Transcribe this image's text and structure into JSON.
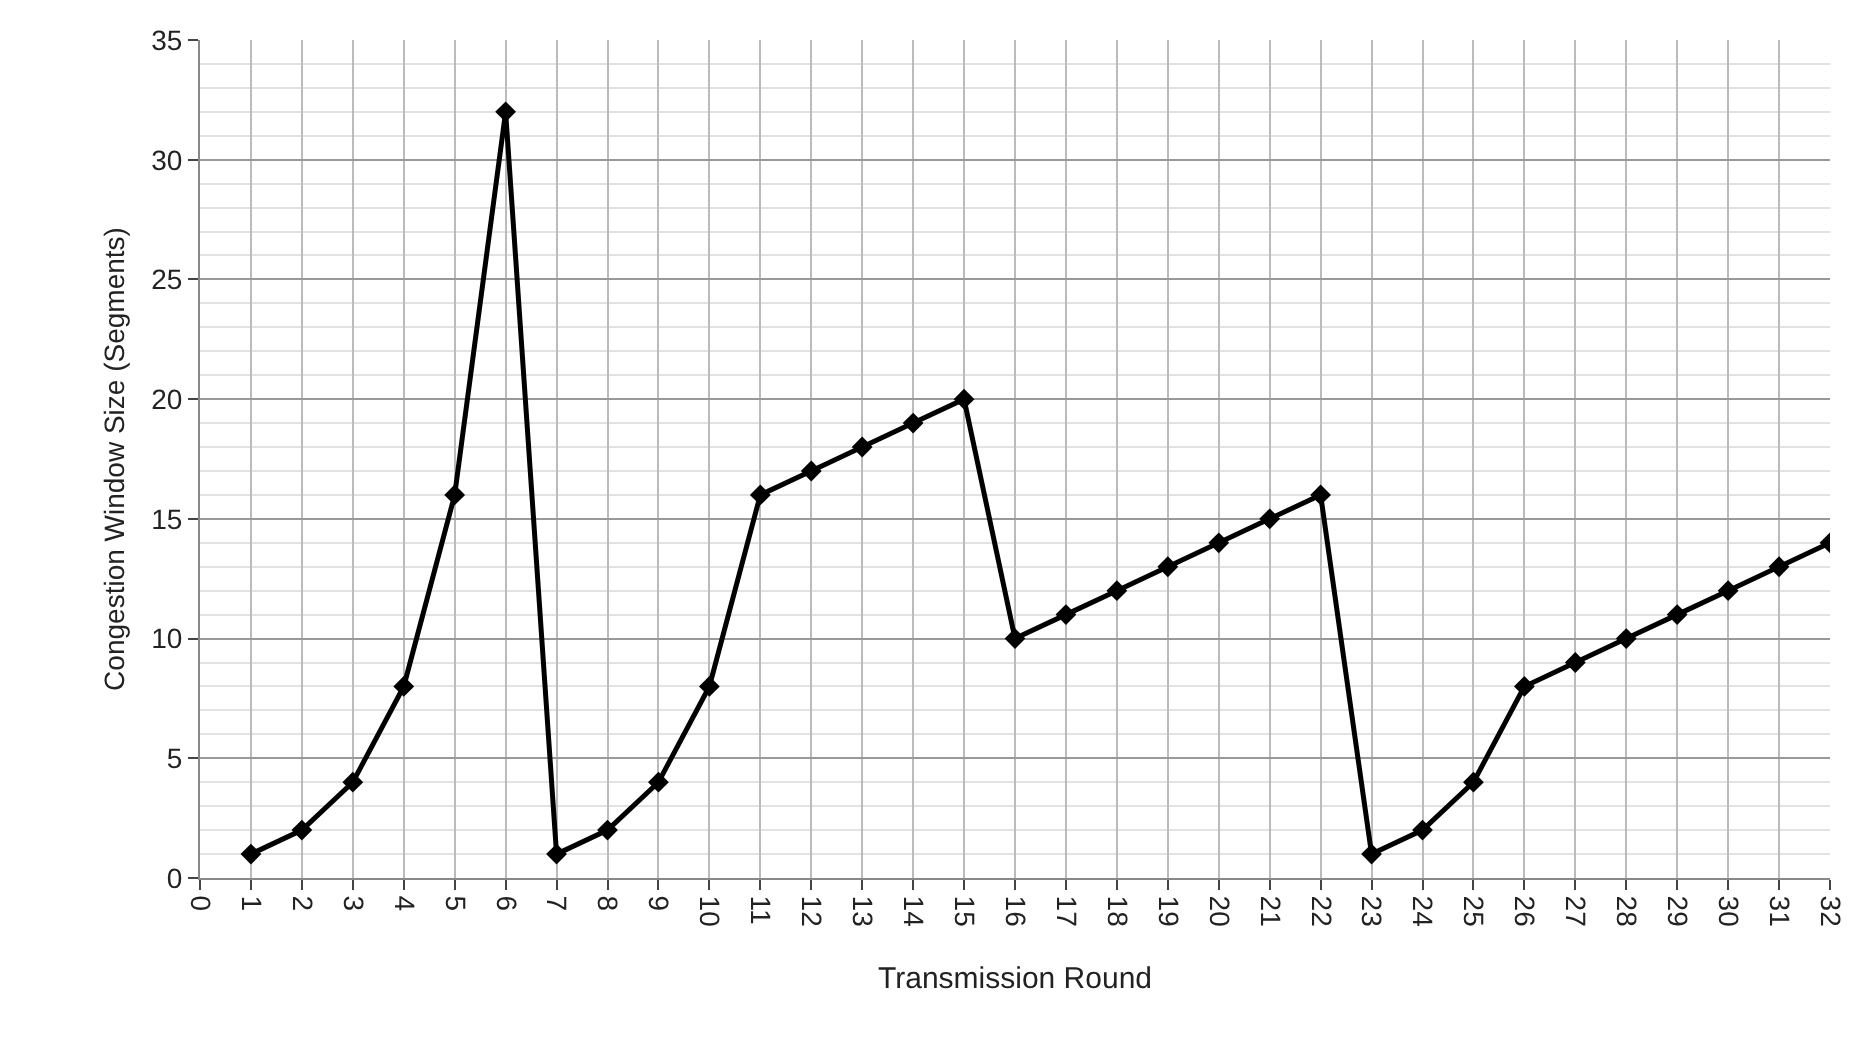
{
  "chart_data": {
    "type": "line",
    "xlabel": "Transmission Round",
    "ylabel": "Congestion Window Size (Segments)",
    "x": [
      1,
      2,
      3,
      4,
      5,
      6,
      7,
      8,
      9,
      10,
      11,
      12,
      13,
      14,
      15,
      16,
      17,
      18,
      19,
      20,
      21,
      22,
      23,
      24,
      25,
      26,
      27,
      28,
      29,
      30,
      31,
      32
    ],
    "series": [
      {
        "color": "#000000",
        "values": [
          1,
          2,
          4,
          8,
          16,
          32,
          1,
          2,
          4,
          8,
          16,
          17,
          18,
          19,
          20,
          10,
          11,
          12,
          13,
          14,
          15,
          16,
          1,
          2,
          4,
          8,
          9,
          10,
          11,
          12,
          13,
          14
        ]
      }
    ],
    "xlim": [
      0,
      32
    ],
    "xticks": [
      0,
      1,
      2,
      3,
      4,
      5,
      6,
      7,
      8,
      9,
      10,
      11,
      12,
      13,
      14,
      15,
      16,
      17,
      18,
      19,
      20,
      21,
      22,
      23,
      24,
      25,
      26,
      27,
      28,
      29,
      30,
      31,
      32
    ],
    "ylim": [
      0,
      35
    ],
    "yticks": [
      0,
      5,
      10,
      15,
      20,
      25,
      30,
      35
    ],
    "grid": true,
    "marker": "diamond",
    "line_style": "solid"
  }
}
